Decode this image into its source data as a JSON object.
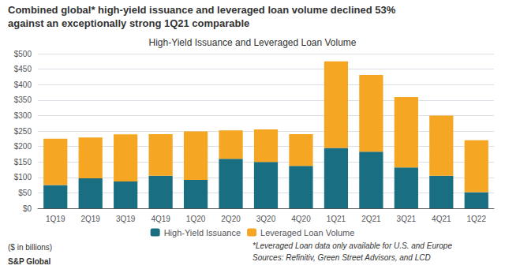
{
  "chart_data": {
    "type": "bar",
    "title": "High-Yield Issuance and Leveraged Loan Volume",
    "categories": [
      "1Q19",
      "2Q19",
      "3Q19",
      "4Q19",
      "1Q20",
      "2Q20",
      "3Q20",
      "4Q20",
      "1Q21",
      "2Q21",
      "3Q21",
      "4Q21",
      "1Q22"
    ],
    "series": [
      {
        "name": "High-Yield Issuance",
        "color": "#1a6e82",
        "values": [
          75,
          97,
          87,
          105,
          92,
          160,
          150,
          137,
          195,
          183,
          132,
          105,
          52
        ]
      },
      {
        "name": "Leveraged Loan Volume",
        "color": "#f5a623",
        "values": [
          150,
          132,
          152,
          135,
          157,
          92,
          105,
          103,
          280,
          248,
          228,
          195,
          168
        ]
      }
    ],
    "stacked": true,
    "ylim": [
      0,
      500
    ],
    "yticks": [
      {
        "value": 0,
        "label": "$0"
      },
      {
        "value": 50,
        "label": "$50"
      },
      {
        "value": 100,
        "label": "$100"
      },
      {
        "value": 150,
        "label": "$150"
      },
      {
        "value": 200,
        "label": "$200"
      },
      {
        "value": 250,
        "label": "$250"
      },
      {
        "value": 300,
        "label": "$300"
      },
      {
        "value": 350,
        "label": "$350"
      },
      {
        "value": 400,
        "label": "$400"
      },
      {
        "value": 450,
        "label": "$450"
      },
      {
        "value": 500,
        "label": "$500"
      }
    ],
    "grid": true,
    "legend": "bottom",
    "annotations": [
      "Combined global* high-yield issuance and leveraged loan volume declined 53%",
      "against an exceptionally strong 1Q21 comparable",
      "($ in billions)",
      "*Leveraged Loan data only available for U.S. and Europe",
      "Sources: Refinitiv, Green Street Advisors, and LCD",
      "S&P Global"
    ]
  }
}
